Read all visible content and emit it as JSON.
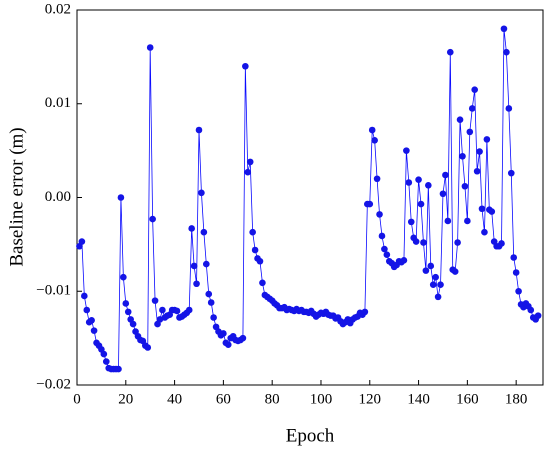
{
  "chart_data": {
    "type": "line",
    "markers": true,
    "color": "#0a0aff",
    "marker_color": "#1414e6",
    "xlabel": "Epoch",
    "ylabel": "Baseline error (m)",
    "xlim": [
      0,
      191
    ],
    "ylim": [
      -0.02,
      0.02
    ],
    "xticks": [
      0,
      20,
      40,
      60,
      80,
      100,
      120,
      140,
      160,
      180
    ],
    "yticks": [
      {
        "value": -0.02,
        "label": "−0.02"
      },
      {
        "value": -0.01,
        "label": "−0.01"
      },
      {
        "value": 0,
        "label": "0.00"
      },
      0.01,
      0.02
    ],
    "x": [
      1,
      2,
      3,
      4,
      5,
      6,
      7,
      8,
      9,
      10,
      11,
      12,
      13,
      14,
      15,
      16,
      17,
      18,
      19,
      20,
      21,
      22,
      23,
      24,
      25,
      26,
      27,
      28,
      29,
      30,
      31,
      32,
      33,
      34,
      35,
      36,
      37,
      38,
      39,
      40,
      41,
      42,
      43,
      44,
      45,
      46,
      47,
      48,
      49,
      50,
      51,
      52,
      53,
      54,
      55,
      56,
      57,
      58,
      59,
      60,
      61,
      62,
      63,
      64,
      65,
      66,
      67,
      68,
      69,
      70,
      71,
      72,
      73,
      74,
      75,
      76,
      77,
      78,
      79,
      80,
      81,
      82,
      83,
      84,
      85,
      86,
      87,
      88,
      89,
      90,
      91,
      92,
      93,
      94,
      95,
      96,
      97,
      98,
      99,
      100,
      101,
      102,
      103,
      104,
      105,
      106,
      107,
      108,
      109,
      110,
      111,
      112,
      113,
      114,
      115,
      116,
      117,
      118,
      119,
      120,
      121,
      122,
      123,
      124,
      125,
      126,
      127,
      128,
      129,
      130,
      131,
      132,
      133,
      134,
      135,
      136,
      137,
      138,
      139,
      140,
      141,
      142,
      143,
      144,
      145,
      146,
      147,
      148,
      149,
      150,
      151,
      152,
      153,
      154,
      155,
      156,
      157,
      158,
      159,
      160,
      161,
      162,
      163,
      164,
      165,
      166,
      167,
      168,
      169,
      170,
      171,
      172,
      173,
      174,
      175,
      176,
      177,
      178,
      179,
      180,
      181,
      182,
      183,
      184,
      185,
      186,
      187,
      188,
      189
    ],
    "values": [
      -0.0052,
      -0.0047,
      -0.0105,
      -0.012,
      -0.0133,
      -0.0131,
      -0.0142,
      -0.0155,
      -0.0158,
      -0.0162,
      -0.0167,
      -0.0175,
      -0.0182,
      -0.0183,
      -0.0183,
      -0.0183,
      -0.0183,
      0,
      -0.0085,
      -0.0113,
      -0.0122,
      -0.013,
      -0.0135,
      -0.0143,
      -0.0148,
      -0.0152,
      -0.0153,
      -0.0158,
      -0.016,
      0.016,
      -0.0023,
      -0.011,
      -0.0135,
      -0.013,
      -0.012,
      -0.0128,
      -0.0126,
      -0.0125,
      -0.012,
      -0.012,
      -0.0121,
      -0.0128,
      -0.0127,
      -0.0125,
      -0.0123,
      -0.012,
      -0.0033,
      -0.0073,
      -0.0092,
      0.0072,
      0.0005,
      -0.0037,
      -0.0071,
      -0.0103,
      -0.0112,
      -0.0128,
      -0.0138,
      -0.0143,
      -0.0147,
      -0.0145,
      -0.0155,
      -0.0157,
      -0.015,
      -0.0148,
      -0.0152,
      -0.0153,
      -0.0152,
      -0.015,
      0.014,
      0.0027,
      0.0038,
      -0.0037,
      -0.0056,
      -0.0065,
      -0.0068,
      -0.0091,
      -0.0104,
      -0.0106,
      -0.0108,
      -0.011,
      -0.0113,
      -0.0115,
      -0.0118,
      -0.0118,
      -0.0117,
      -0.012,
      -0.0119,
      -0.012,
      -0.0121,
      -0.0119,
      -0.0121,
      -0.012,
      -0.0122,
      -0.0122,
      -0.0123,
      -0.0121,
      -0.0124,
      -0.0127,
      -0.0125,
      -0.0123,
      -0.0124,
      -0.0122,
      -0.0125,
      -0.0126,
      -0.0126,
      -0.0129,
      -0.0128,
      -0.0132,
      -0.0135,
      -0.0133,
      -0.013,
      -0.0134,
      -0.013,
      -0.0128,
      -0.0127,
      -0.0123,
      -0.0125,
      -0.0122,
      -0.0007,
      -0.0007,
      0.0072,
      0.0061,
      0.002,
      -0.0018,
      -0.0041,
      -0.0055,
      -0.0061,
      -0.0068,
      -0.007,
      -0.0074,
      -0.0072,
      -0.0068,
      -0.0069,
      -0.0067,
      0.005,
      0.0016,
      -0.0026,
      -0.0043,
      -0.0047,
      0.0019,
      -0.0007,
      -0.0048,
      -0.0078,
      0.0013,
      -0.0073,
      -0.0093,
      -0.0085,
      -0.0106,
      -0.0093,
      0.0004,
      0.0024,
      -0.0025,
      0.0155,
      -0.0077,
      -0.0079,
      -0.0048,
      0.0083,
      0.0044,
      0.0012,
      -0.0025,
      0.007,
      0.0095,
      0.0115,
      0.0028,
      0.0049,
      -0.0012,
      -0.0037,
      0.0062,
      -0.0013,
      -0.0015,
      -0.0047,
      -0.0052,
      -0.0052,
      -0.0049,
      0.018,
      0.0155,
      0.0095,
      0.0026,
      -0.0064,
      -0.008,
      -0.01,
      -0.0114,
      -0.0117,
      -0.0113,
      -0.0116,
      -0.012,
      -0.0128,
      -0.013,
      -0.0126
    ]
  }
}
